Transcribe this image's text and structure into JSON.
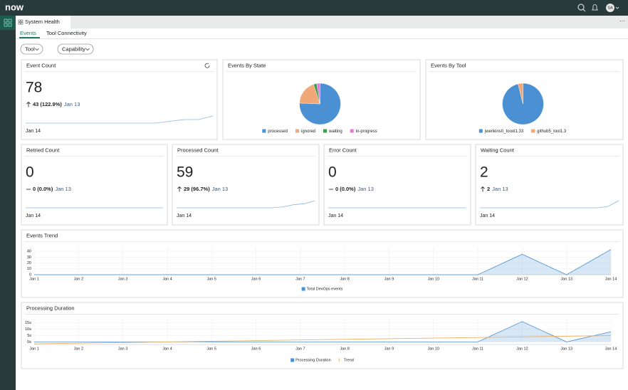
{
  "header": {
    "logo": "now",
    "avatar": "SA"
  },
  "tab": "System Health",
  "subtabs": [
    "Events",
    "Tool Connectivity"
  ],
  "filters": [
    "Tool",
    "Capability"
  ],
  "counters": [
    {
      "title": "Event Count",
      "value": "78",
      "direction": "up",
      "change": "43 (122.9%)",
      "compare": "Jan 13",
      "date": "Jan 14",
      "sparkline": [
        2,
        2,
        2,
        2,
        2,
        2,
        2,
        2,
        2,
        2,
        3,
        4,
        4,
        6
      ]
    },
    {
      "title": "Retried Count",
      "value": "0",
      "direction": "flat",
      "change": "0 (0.0%)",
      "compare": "Jan 13",
      "date": "Jan 14",
      "sparkline": [
        2,
        2,
        2,
        2,
        2,
        2,
        2,
        2,
        2,
        2,
        2,
        2,
        2,
        2
      ]
    },
    {
      "title": "Processed Count",
      "value": "59",
      "direction": "up",
      "change": "29 (96.7%)",
      "compare": "Jan 13",
      "date": "Jan 14",
      "sparkline": [
        2,
        2,
        2,
        2,
        2,
        2,
        2,
        2,
        2,
        2,
        2.5,
        3.5,
        4,
        5.5
      ]
    },
    {
      "title": "Error Count",
      "value": "0",
      "direction": "flat",
      "change": "0 (0.0%)",
      "compare": "Jan 13",
      "date": "Jan 14",
      "sparkline": [
        2,
        2,
        2,
        2,
        2,
        2,
        2,
        2,
        2,
        2,
        2,
        2,
        2,
        2
      ]
    },
    {
      "title": "Waiting Count",
      "value": "2",
      "direction": "up",
      "change": "2",
      "compare": "Jan 13",
      "date": "Jan 14",
      "sparkline": [
        2,
        2,
        2,
        2,
        2,
        2,
        2,
        2,
        2,
        2,
        2,
        2,
        2.5,
        4.5
      ]
    }
  ],
  "pies": [
    {
      "type": "pie",
      "title": "Events By State",
      "series": [
        {
          "name": "processed",
          "color": "#4a90d2",
          "value": 59
        },
        {
          "name": "ignored",
          "color": "#f0a878",
          "value": 15
        },
        {
          "name": "waiting",
          "color": "#3f9e50",
          "value": 2
        },
        {
          "name": "in-progress",
          "color": "#e07ad8",
          "value": 2
        }
      ]
    },
    {
      "type": "pie",
      "title": "Events By Tool",
      "series": [
        {
          "name": "jwenkins0_toool1.33",
          "color": "#4a90d2",
          "value": 75
        },
        {
          "name": "github5_tool1.3",
          "color": "#f0a878",
          "value": 3
        }
      ]
    }
  ],
  "charts": [
    {
      "type": "area",
      "title": "Events Trend",
      "categories": [
        "Jan 1",
        "Jan 2",
        "Jan 3",
        "Jan 4",
        "Jan 5",
        "Jan 6",
        "Jan 7",
        "Jan 8",
        "Jan 9",
        "Jan 10",
        "Jan 11",
        "Jan 12",
        "Jan 13",
        "Jan 14"
      ],
      "ylim": [
        0,
        45
      ],
      "yticks": [
        0,
        10,
        20,
        30,
        40
      ],
      "grid": true,
      "series": [
        {
          "name": "Total DevOps events",
          "color": "#4a90d2",
          "type": "area",
          "values": [
            0,
            0,
            0,
            0,
            0,
            0,
            0,
            0,
            0,
            0,
            0,
            35,
            0,
            43
          ]
        }
      ]
    },
    {
      "type": "area",
      "title": "Processing Duration",
      "categories": [
        "Jan 1",
        "Jan 2",
        "Jan 3",
        "Jan 4",
        "Jan 5",
        "Jan 6",
        "Jan 7",
        "Jan 8",
        "Jan 9",
        "Jan 10",
        "Jan 11",
        "Jan 12",
        "Jan 13",
        "Jan 14"
      ],
      "ylim": [
        -2,
        17
      ],
      "yticks": [
        {
          "value": 0,
          "label": "0s"
        },
        {
          "value": 5,
          "label": "5s"
        },
        {
          "value": 10,
          "label": "10s"
        },
        {
          "value": 15,
          "label": "15s"
        }
      ],
      "grid": true,
      "series": [
        {
          "name": "Processing Duration",
          "color": "#4a90d2",
          "type": "area",
          "values": [
            0,
            0,
            0,
            0,
            0,
            0,
            0,
            0,
            0,
            0,
            0,
            16,
            0,
            8
          ]
        },
        {
          "name": "Trend",
          "color": "#f0b060",
          "type": "line",
          "values": [
            -1.5,
            -1,
            -0.5,
            0,
            0.5,
            1,
            1.5,
            2,
            2.5,
            3,
            3.5,
            4,
            4.5,
            5
          ]
        }
      ]
    }
  ]
}
